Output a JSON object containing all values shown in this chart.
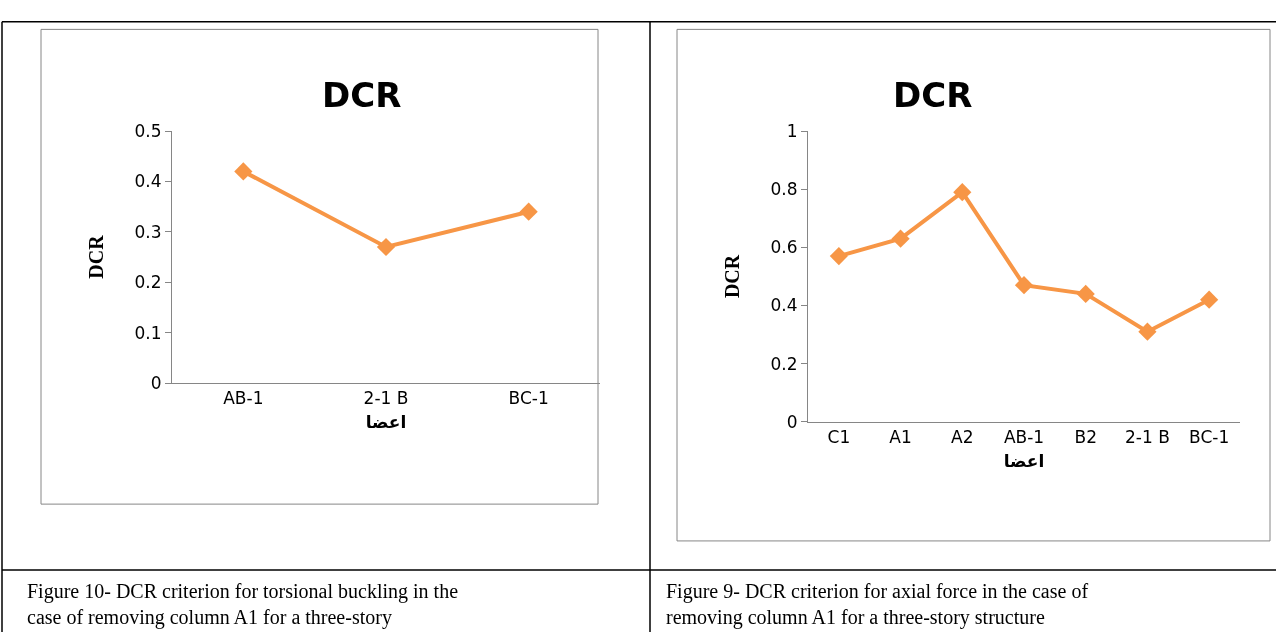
{
  "chart_data": [
    {
      "type": "line",
      "title": "DCR",
      "xlabel": "اعضا",
      "ylabel": "DCR",
      "categories": [
        "AB-1",
        "2-1 B",
        "BC-1"
      ],
      "series": [
        {
          "color": "#f79646",
          "values": [
            0.42,
            0.27,
            0.34
          ]
        }
      ],
      "ylim": [
        0,
        0.5
      ],
      "yticks": [
        0,
        0.1,
        0.2,
        0.3,
        0.4,
        0.5
      ],
      "marker": "diamond",
      "line_style": "solid",
      "annotations": [
        "Figure 10- DCR criterion for torsional buckling in the case of removing column A1 for a three-story"
      ]
    },
    {
      "type": "line",
      "title": "DCR",
      "xlabel": "اعضا",
      "ylabel": "DCR",
      "categories": [
        "C1",
        "A1",
        "A2",
        "AB-1",
        "B2",
        "2-1 B",
        "BC-1"
      ],
      "series": [
        {
          "color": "#f79646",
          "values": [
            0.57,
            0.63,
            0.79,
            0.47,
            0.44,
            0.31,
            0.42
          ]
        }
      ],
      "ylim": [
        0,
        1
      ],
      "yticks": [
        0,
        0.2,
        0.4,
        0.6,
        0.8,
        1
      ],
      "marker": "diamond",
      "line_style": "solid",
      "annotations": [
        "Figure 9- DCR criterion for axial force in the case of removing column A1 for a three-story structure"
      ]
    }
  ]
}
